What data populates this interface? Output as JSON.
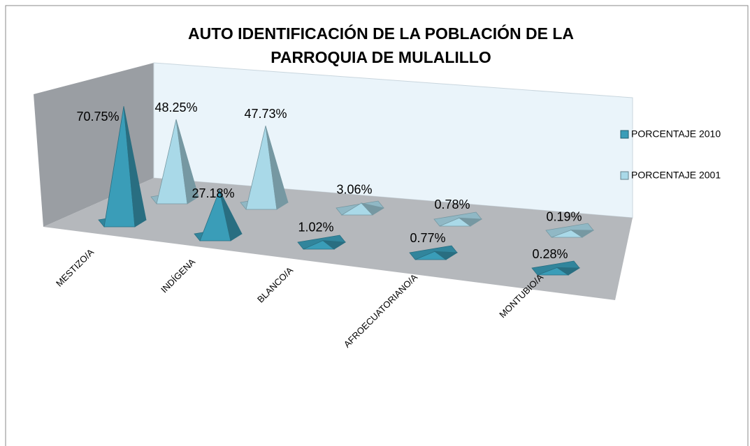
{
  "chart_data": {
    "type": "pyramid3d",
    "title": [
      "AUTO IDENTIFICACIÓN DE LA POBLACIÓN DE LA",
      "PARROQUIA DE MULALILLO"
    ],
    "categories": [
      "MESTIZO/A",
      "INDÍGENA",
      "BLANCO/A",
      "AFROECUATORIANO/A",
      "MONTUBIO/A"
    ],
    "series": [
      {
        "name": "PORCENTAJE 2010",
        "color": "#3a9db8",
        "values": [
          70.75,
          27.18,
          1.02,
          0.77,
          0.28
        ],
        "value_labels": [
          "70.75%",
          "27.18%",
          "1.02%",
          "0.77%",
          "0.28%"
        ]
      },
      {
        "name": "PORCENTAJE 2001",
        "color": "#a9d9e8",
        "values": [
          48.25,
          47.73,
          3.06,
          0.78,
          0.19
        ],
        "value_labels": [
          "48.25%",
          "47.73%",
          "3.06%",
          "0.78%",
          "0.19%"
        ]
      }
    ],
    "legend": "right"
  }
}
